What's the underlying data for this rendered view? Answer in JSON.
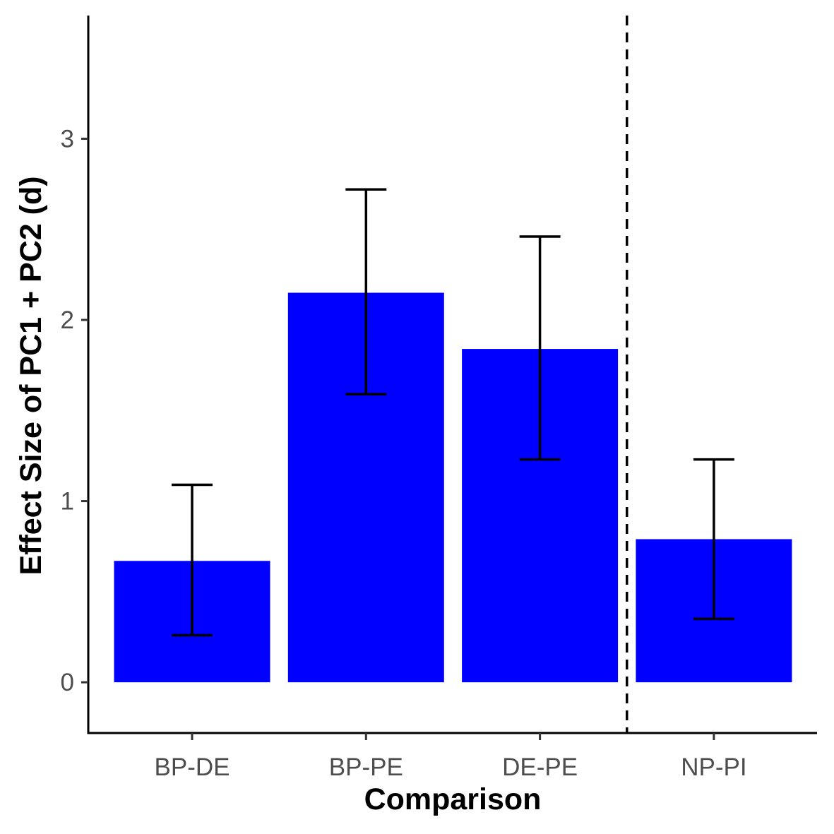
{
  "chart_data": {
    "type": "bar",
    "title": "",
    "xlabel": "Comparison",
    "ylabel": "Effect Size of PC1 + PC2 (d)",
    "categories": [
      "BP-DE",
      "BP-PE",
      "DE-PE",
      "NP-PI"
    ],
    "values": [
      0.67,
      2.15,
      1.84,
      0.79
    ],
    "error_low": [
      0.26,
      1.59,
      1.23,
      0.35
    ],
    "error_high": [
      1.09,
      2.72,
      2.46,
      1.23
    ],
    "ylim": [
      -0.28,
      3.68
    ],
    "yticks": [
      0,
      1,
      2,
      3
    ],
    "divider_after_category": "DE-PE",
    "grid": false,
    "legend": "none",
    "colors": {
      "bar": "#0000ff",
      "error_bar": "#000000",
      "axis": "#000000",
      "tick_label": "#4d4d4d"
    }
  }
}
